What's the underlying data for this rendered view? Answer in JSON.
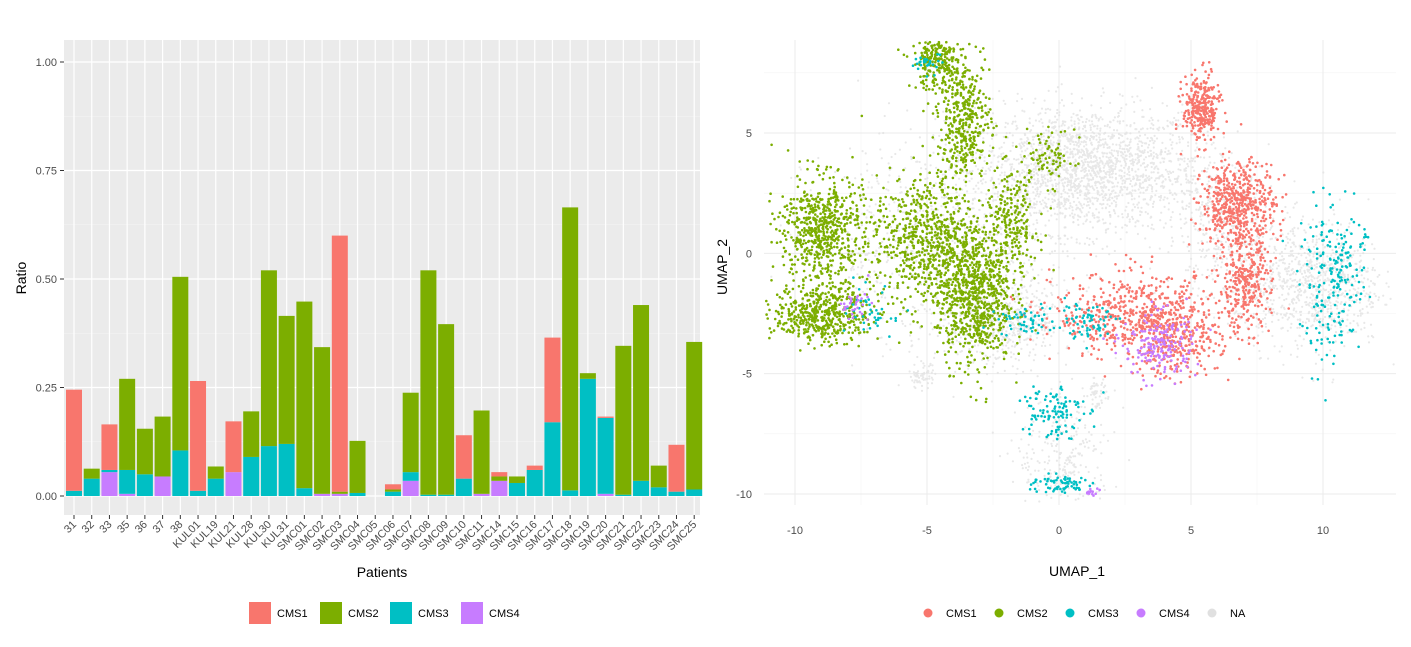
{
  "colors": {
    "CMS1": "#F8766D",
    "CMS2": "#7CAE00",
    "CMS3": "#00BFC4",
    "CMS4": "#C77CFF",
    "NA": "#e0e0e0"
  },
  "chart_data": [
    {
      "type": "bar",
      "stacked": true,
      "title": "",
      "xlabel": "Patients",
      "ylabel": "Ratio",
      "ylim": [
        0,
        1.0
      ],
      "yticks": [
        "0.00",
        "0.25",
        "0.50",
        "0.75",
        "1.00"
      ],
      "grid": true,
      "legend_position": "bottom",
      "categories": [
        "31",
        "32",
        "33",
        "35",
        "36",
        "37",
        "38",
        "KUL01",
        "KUL19",
        "KUL21",
        "KUL28",
        "KUL30",
        "KUL31",
        "SMC01",
        "SMC02",
        "SMC03",
        "SMC04",
        "SMC05",
        "SMC06",
        "SMC07",
        "SMC08",
        "SMC09",
        "SMC10",
        "SMC11",
        "SMC14",
        "SMC15",
        "SMC16",
        "SMC17",
        "SMC18",
        "SMC19",
        "SMC20",
        "SMC21",
        "SMC22",
        "SMC23",
        "SMC24",
        "SMC25"
      ],
      "series": [
        {
          "name": "CMS4",
          "values": [
            0.0,
            0.0,
            0.055,
            0.005,
            0.0,
            0.045,
            0.0,
            0.0,
            0.0,
            0.055,
            0.0,
            0.0,
            0.0,
            0.0,
            0.005,
            0.005,
            0.0,
            0.0,
            0.0,
            0.035,
            0.0,
            0.0,
            0.0,
            0.005,
            0.035,
            0.0,
            0.0,
            0.0,
            0.0,
            0.0,
            0.005,
            0.0,
            0.0,
            0.0,
            0.0,
            0.0
          ]
        },
        {
          "name": "CMS3",
          "values": [
            0.012,
            0.04,
            0.005,
            0.055,
            0.05,
            0.0,
            0.105,
            0.012,
            0.04,
            0.0,
            0.09,
            0.115,
            0.12,
            0.018,
            0.0,
            0.0,
            0.007,
            0.0,
            0.01,
            0.02,
            0.003,
            0.003,
            0.04,
            0.0,
            0.0,
            0.03,
            0.06,
            0.17,
            0.013,
            0.27,
            0.175,
            0.003,
            0.035,
            0.02,
            0.01,
            0.015
          ]
        },
        {
          "name": "CMS2",
          "values": [
            0.0,
            0.023,
            0.0,
            0.21,
            0.105,
            0.138,
            0.4,
            0.0,
            0.028,
            0.0,
            0.105,
            0.405,
            0.295,
            0.43,
            0.338,
            0.005,
            0.12,
            0.0,
            0.005,
            0.183,
            0.517,
            0.393,
            0.0,
            0.192,
            0.01,
            0.015,
            0.0,
            0.0,
            0.652,
            0.013,
            0.0,
            0.343,
            0.405,
            0.05,
            0.0,
            0.34
          ]
        },
        {
          "name": "CMS1",
          "values": [
            0.233,
            0.0,
            0.105,
            0.0,
            0.0,
            0.0,
            0.0,
            0.253,
            0.0,
            0.117,
            0.0,
            0.0,
            0.0,
            0.0,
            0.0,
            0.59,
            0.0,
            0.0,
            0.012,
            0.0,
            0.0,
            0.0,
            0.1,
            0.0,
            0.01,
            0.0,
            0.01,
            0.195,
            0.0,
            0.0,
            0.003,
            0.0,
            0.0,
            0.0,
            0.108,
            0.0
          ]
        }
      ],
      "legend": [
        "CMS1",
        "CMS2",
        "CMS3",
        "CMS4"
      ]
    },
    {
      "type": "scatter",
      "title": "",
      "xlabel": "UMAP_1",
      "ylabel": "UMAP_2",
      "xlim": [
        -11.0,
        12.8
      ],
      "ylim": [
        -10.5,
        8.8
      ],
      "xticks": [
        "-10",
        "-5",
        "0",
        "5",
        "10"
      ],
      "yticks": [
        "-10",
        "-5",
        "0",
        "5"
      ],
      "grid": true,
      "legend_position": "bottom",
      "legend": [
        "CMS1",
        "CMS2",
        "CMS3",
        "CMS4",
        "NA"
      ],
      "clusters": [
        {
          "group": "NA",
          "cx": 1.0,
          "cy": 3.5,
          "sx": 2.2,
          "sy": 1.3,
          "n": 2000
        },
        {
          "group": "NA",
          "cx": 9.5,
          "cy": -1.3,
          "sx": 1.4,
          "sy": 1.3,
          "n": 900
        },
        {
          "group": "NA",
          "cx": -2.0,
          "cy": -2.8,
          "sx": 1.3,
          "sy": 0.9,
          "n": 500
        },
        {
          "group": "NA",
          "cx": -4.5,
          "cy": 0.5,
          "sx": 2.5,
          "sy": 2.2,
          "n": 700
        },
        {
          "group": "NA",
          "cx": 6.0,
          "cy": 1.0,
          "sx": 1.0,
          "sy": 1.5,
          "n": 300
        },
        {
          "group": "NA",
          "cx": 0.2,
          "cy": -8.5,
          "sx": 0.9,
          "sy": 1.2,
          "n": 250
        },
        {
          "group": "NA",
          "cx": -5.2,
          "cy": -5.1,
          "sx": 0.25,
          "sy": 0.25,
          "n": 60
        },
        {
          "group": "NA",
          "cx": 1.4,
          "cy": -5.8,
          "sx": 0.2,
          "sy": 0.3,
          "n": 50
        },
        {
          "group": "CMS2",
          "cx": -4.6,
          "cy": 8.0,
          "sx": 0.5,
          "sy": 0.6,
          "n": 250
        },
        {
          "group": "CMS2",
          "cx": -3.6,
          "cy": 5.6,
          "sx": 0.5,
          "sy": 1.2,
          "n": 400
        },
        {
          "group": "CMS2",
          "cx": -9.0,
          "cy": 1.0,
          "sx": 0.8,
          "sy": 1.1,
          "n": 650
        },
        {
          "group": "CMS2",
          "cx": -9.0,
          "cy": -2.5,
          "sx": 0.9,
          "sy": 0.6,
          "n": 500
        },
        {
          "group": "CMS2",
          "cx": -5.0,
          "cy": 0.5,
          "sx": 1.0,
          "sy": 1.4,
          "n": 700
        },
        {
          "group": "CMS2",
          "cx": -3.2,
          "cy": -1.8,
          "sx": 0.7,
          "sy": 1.4,
          "n": 800
        },
        {
          "group": "CMS2",
          "cx": -1.8,
          "cy": 1.2,
          "sx": 0.5,
          "sy": 1.1,
          "n": 250
        },
        {
          "group": "CMS2",
          "cx": -0.4,
          "cy": 4.0,
          "sx": 0.5,
          "sy": 0.6,
          "n": 80
        },
        {
          "group": "CMS1",
          "cx": 5.4,
          "cy": 6.0,
          "sx": 0.35,
          "sy": 0.7,
          "n": 300
        },
        {
          "group": "CMS1",
          "cx": 6.8,
          "cy": 2.0,
          "sx": 0.7,
          "sy": 0.9,
          "n": 550
        },
        {
          "group": "CMS1",
          "cx": 7.0,
          "cy": -1.4,
          "sx": 0.5,
          "sy": 0.9,
          "n": 300
        },
        {
          "group": "CMS1",
          "cx": 3.0,
          "cy": -2.6,
          "sx": 1.6,
          "sy": 0.9,
          "n": 550
        },
        {
          "group": "CMS1",
          "cx": 4.5,
          "cy": -3.6,
          "sx": 0.8,
          "sy": 0.8,
          "n": 250
        },
        {
          "group": "CMS3",
          "cx": 10.3,
          "cy": -1.4,
          "sx": 0.6,
          "sy": 1.6,
          "n": 180
        },
        {
          "group": "CMS3",
          "cx": -1.3,
          "cy": -2.8,
          "sx": 0.5,
          "sy": 0.3,
          "n": 50
        },
        {
          "group": "CMS3",
          "cx": 1.0,
          "cy": -2.8,
          "sx": 0.7,
          "sy": 0.4,
          "n": 70
        },
        {
          "group": "CMS3",
          "cx": -0.3,
          "cy": -6.5,
          "sx": 0.6,
          "sy": 0.6,
          "n": 110
        },
        {
          "group": "CMS3",
          "cx": 0.0,
          "cy": -9.6,
          "sx": 0.6,
          "sy": 0.2,
          "n": 70
        },
        {
          "group": "CMS3",
          "cx": -4.9,
          "cy": 7.9,
          "sx": 0.3,
          "sy": 0.2,
          "n": 30
        },
        {
          "group": "CMS3",
          "cx": -7.0,
          "cy": -2.5,
          "sx": 0.5,
          "sy": 0.5,
          "n": 40
        },
        {
          "group": "CMS3",
          "cx": 11.0,
          "cy": 0.0,
          "sx": 0.3,
          "sy": 0.6,
          "n": 40
        },
        {
          "group": "CMS4",
          "cx": 3.8,
          "cy": -3.8,
          "sx": 0.7,
          "sy": 0.7,
          "n": 180
        },
        {
          "group": "CMS4",
          "cx": -7.8,
          "cy": -2.2,
          "sx": 0.3,
          "sy": 0.3,
          "n": 30
        },
        {
          "group": "CMS4",
          "cx": 1.3,
          "cy": -9.9,
          "sx": 0.2,
          "sy": 0.1,
          "n": 15
        }
      ]
    }
  ]
}
